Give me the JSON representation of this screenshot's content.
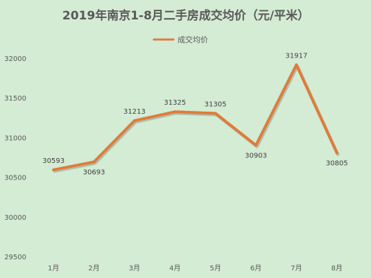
{
  "chart_data": {
    "type": "line",
    "title": "2019年南京1-8月二手房成交均价（元/平米）",
    "categories": [
      "1月",
      "2月",
      "3月",
      "4月",
      "5月",
      "6月",
      "7月",
      "8月"
    ],
    "series": [
      {
        "name": "成交均价",
        "values": [
          30593,
          30693,
          31213,
          31325,
          31305,
          30903,
          31917,
          30805
        ],
        "color": "#e07b39"
      }
    ],
    "y_ticks": [
      29500,
      30000,
      30500,
      31000,
      31500,
      32000
    ],
    "ylim": [
      29500,
      32000
    ],
    "xlabel": "",
    "ylabel": "",
    "legend_position": "top",
    "grid": false,
    "data_labels": true
  },
  "colors": {
    "background": "#d4ebd4",
    "line": "#e07b39",
    "text": "#595959"
  }
}
